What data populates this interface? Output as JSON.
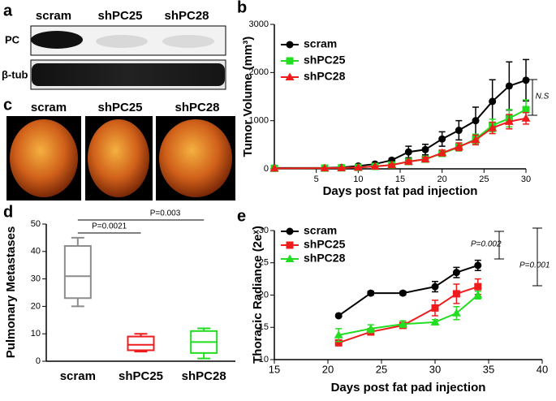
{
  "blot": {
    "label": "a",
    "lanes": [
      "scram",
      "shPC25",
      "shPC28"
    ],
    "rows": [
      "PC",
      "β-tub"
    ]
  },
  "photos": {
    "label": "c",
    "lanes": [
      "scram",
      "shPC25",
      "shPC28"
    ]
  },
  "chart_data": [
    {
      "type": "line",
      "label": "b",
      "y_label": "Tumor Volume (mm³)",
      "x_label": "Days post fat pad injection",
      "x": [
        0,
        6,
        8,
        10,
        12,
        14,
        16,
        18,
        20,
        22,
        24,
        26,
        28,
        30
      ],
      "xlim": [
        0,
        30
      ],
      "xticks": [
        5,
        10,
        15,
        20,
        25,
        30
      ],
      "ylim": [
        0,
        3000
      ],
      "yticks": [
        0,
        1000,
        2000,
        3000
      ],
      "series": [
        {
          "name": "scram",
          "color": "#000000",
          "marker": "circle",
          "values": [
            20,
            20,
            30,
            60,
            100,
            180,
            350,
            400,
            620,
            800,
            1000,
            1400,
            1720,
            1840
          ],
          "errors": [
            0,
            0,
            0,
            10,
            20,
            30,
            120,
            110,
            150,
            200,
            280,
            450,
            500,
            430
          ]
        },
        {
          "name": "shPC25",
          "color": "#22dd22",
          "marker": "square",
          "values": [
            10,
            15,
            20,
            30,
            50,
            80,
            150,
            200,
            320,
            450,
            620,
            900,
            1050,
            1230
          ],
          "errors": [
            0,
            0,
            0,
            0,
            0,
            20,
            40,
            40,
            60,
            80,
            100,
            130,
            180,
            200
          ]
        },
        {
          "name": "shPC28",
          "color": "#ee1c1c",
          "marker": "triangle",
          "values": [
            10,
            15,
            20,
            30,
            50,
            80,
            150,
            200,
            330,
            460,
            600,
            850,
            980,
            1050
          ],
          "errors": [
            0,
            0,
            0,
            0,
            0,
            20,
            30,
            40,
            60,
            80,
            100,
            120,
            150,
            120
          ]
        }
      ],
      "annotation": "N.S"
    },
    {
      "type": "box",
      "label": "d",
      "y_label": "Pulmonary Metastases",
      "categories": [
        "scram",
        "shPC25",
        "shPC28"
      ],
      "colors": [
        "#8c8c8c",
        "#ee1c1c",
        "#22dd22"
      ],
      "boxes": [
        {
          "min": 20,
          "q1": 23,
          "median": 31,
          "q3": 42,
          "max": 45
        },
        {
          "min": 3.5,
          "q1": 4,
          "median": 6,
          "q3": 9,
          "max": 10
        },
        {
          "min": 1,
          "q1": 3,
          "median": 7,
          "q3": 11,
          "max": 12
        }
      ],
      "ylim": [
        0,
        50
      ],
      "yticks": [
        0,
        10,
        20,
        30,
        40,
        50
      ],
      "annotations": [
        "P=0.0021",
        "P=0.003"
      ]
    },
    {
      "type": "line",
      "label": "e",
      "y_label": "Thoracic Radiance (2eˣ)",
      "x_label": "Days post fat pad injection",
      "x": [
        21,
        24,
        27,
        30,
        32,
        34
      ],
      "xlim": [
        15,
        40
      ],
      "xticks": [
        15,
        20,
        25,
        30,
        35,
        40
      ],
      "ylim": [
        10,
        30
      ],
      "yticks": [
        10,
        15,
        20,
        25,
        30
      ],
      "series": [
        {
          "name": "scram",
          "color": "#000000",
          "marker": "circle",
          "values": [
            16.8,
            20.3,
            20.3,
            21.3,
            23.5,
            24.6
          ],
          "errors": [
            0.2,
            0.3,
            0.3,
            0.8,
            0.8,
            0.8
          ]
        },
        {
          "name": "shPC25",
          "color": "#ee1c1c",
          "marker": "square",
          "values": [
            12.6,
            14.3,
            15.3,
            18,
            20.2,
            21.3
          ],
          "errors": [
            0.4,
            0.5,
            0.4,
            1.2,
            1.5,
            1.2
          ]
        },
        {
          "name": "shPC28",
          "color": "#22dd22",
          "marker": "triangle",
          "values": [
            13.8,
            14.8,
            15.5,
            15.8,
            17.2,
            20
          ],
          "errors": [
            1,
            0.6,
            0.5,
            0.4,
            1,
            0.6
          ]
        }
      ],
      "annotations": [
        "P=0.002",
        "P=0.001"
      ]
    }
  ]
}
